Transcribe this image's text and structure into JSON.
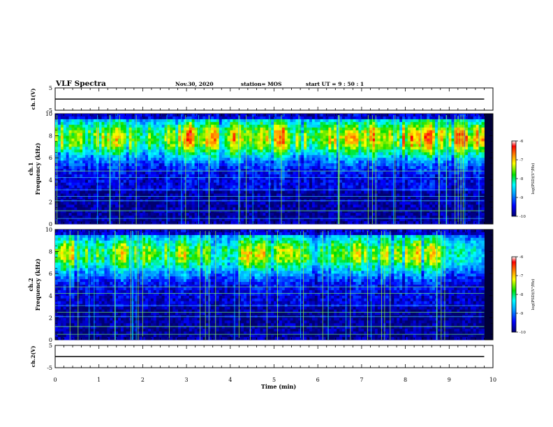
{
  "header": {
    "title": "VLF Spectra",
    "date": "Nov.30, 2020",
    "station": "station= MOS",
    "start": "start  UT =   9 : 50 : 1"
  },
  "chart_data": [
    {
      "type": "line",
      "panel": "ch1-voltage",
      "ylabel": "ch.1(V)",
      "ylim": [
        -5,
        5
      ],
      "yticks": [
        "5",
        "-5"
      ],
      "x": [
        0,
        9.8
      ],
      "values": [
        0,
        0
      ]
    },
    {
      "type": "heatmap",
      "panel": "ch1-spectrogram",
      "ylabel": [
        "ch.1",
        "Frequency  (kHz)"
      ],
      "ylim": [
        0,
        10
      ],
      "yticks": [
        "0",
        "2",
        "4",
        "6",
        "8",
        "10"
      ],
      "xlim": [
        0,
        9.8
      ],
      "colorbar": {
        "label": "log(PSD)(V²/Hz)",
        "range": [
          -10,
          -6
        ],
        "ticks": [
          "-6",
          "-7",
          "-8",
          "-9",
          "-10"
        ]
      },
      "seed": 11,
      "intensity": 1.0
    },
    {
      "type": "heatmap",
      "panel": "ch2-spectrogram",
      "ylabel": [
        "ch.2",
        "Frequency  (kHz)"
      ],
      "ylim": [
        0,
        10
      ],
      "yticks": [
        "0",
        "2",
        "4",
        "6",
        "8",
        "10"
      ],
      "xlim": [
        0,
        9.8
      ],
      "colorbar": {
        "label": "log(PSD)(V²/Hz)",
        "range": [
          -10,
          -6
        ],
        "ticks": [
          "-6",
          "-7",
          "-8",
          "-9",
          "-10"
        ]
      },
      "seed": 29,
      "intensity": 0.88
    },
    {
      "type": "line",
      "panel": "ch2-voltage",
      "ylabel": "ch.2(V)",
      "ylim": [
        -5,
        5
      ],
      "yticks": [
        "5",
        "-5"
      ],
      "x": [
        0,
        9.8
      ],
      "values": [
        0,
        0
      ]
    }
  ],
  "xaxis": {
    "label": "Time  (min)",
    "range": [
      0,
      10
    ],
    "ticks": [
      "0",
      "1",
      "2",
      "3",
      "4",
      "5",
      "6",
      "7",
      "8",
      "9",
      "10"
    ]
  }
}
